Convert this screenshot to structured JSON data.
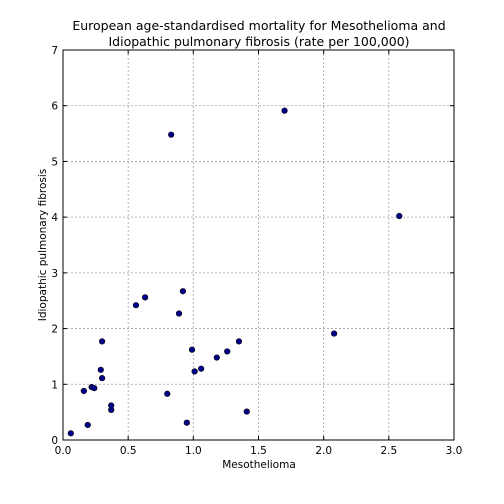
{
  "chart_data": {
    "type": "scatter",
    "title": "European age-standardised mortality for Mesothelioma and Idiopathic pulmonary fibrosis (rate per 100,000)",
    "title_lines": [
      "European age-standardised mortality for Mesothelioma and",
      "Idiopathic pulmonary fibrosis (rate per 100,000)"
    ],
    "xlabel": "Mesothelioma",
    "ylabel": "Idiopathic pulmonary fibrosis",
    "xlim": [
      0.0,
      3.0
    ],
    "ylim": [
      0,
      7
    ],
    "x_ticks": [
      0.0,
      0.5,
      1.0,
      1.5,
      2.0,
      2.5,
      3.0
    ],
    "x_tick_labels": [
      "0.0",
      "0.5",
      "1.0",
      "1.5",
      "2.0",
      "2.5",
      "3.0"
    ],
    "y_ticks": [
      0,
      1,
      2,
      3,
      4,
      5,
      6,
      7
    ],
    "y_tick_labels": [
      "0",
      "1",
      "2",
      "3",
      "4",
      "5",
      "6",
      "7"
    ],
    "grid": true,
    "marker_color": "#00008b",
    "points": [
      {
        "x": 0.06,
        "y": 0.12
      },
      {
        "x": 0.16,
        "y": 0.88
      },
      {
        "x": 0.19,
        "y": 0.27
      },
      {
        "x": 0.22,
        "y": 0.95
      },
      {
        "x": 0.24,
        "y": 0.93
      },
      {
        "x": 0.29,
        "y": 1.26
      },
      {
        "x": 0.3,
        "y": 1.11
      },
      {
        "x": 0.3,
        "y": 1.77
      },
      {
        "x": 0.37,
        "y": 0.54
      },
      {
        "x": 0.37,
        "y": 0.62
      },
      {
        "x": 0.56,
        "y": 2.42
      },
      {
        "x": 0.63,
        "y": 2.56
      },
      {
        "x": 0.8,
        "y": 0.83
      },
      {
        "x": 0.83,
        "y": 5.48
      },
      {
        "x": 0.89,
        "y": 2.27
      },
      {
        "x": 0.92,
        "y": 2.67
      },
      {
        "x": 0.95,
        "y": 0.31
      },
      {
        "x": 0.99,
        "y": 1.62
      },
      {
        "x": 1.01,
        "y": 1.23
      },
      {
        "x": 1.06,
        "y": 1.28
      },
      {
        "x": 1.18,
        "y": 1.48
      },
      {
        "x": 1.26,
        "y": 1.59
      },
      {
        "x": 1.35,
        "y": 1.77
      },
      {
        "x": 1.41,
        "y": 0.51
      },
      {
        "x": 1.7,
        "y": 5.91
      },
      {
        "x": 2.08,
        "y": 1.91
      },
      {
        "x": 2.58,
        "y": 4.02
      }
    ]
  }
}
